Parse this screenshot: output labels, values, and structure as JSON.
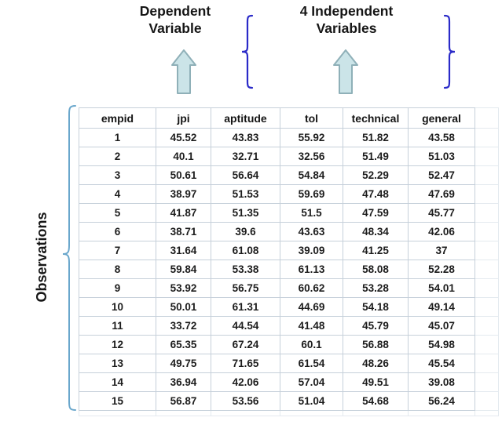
{
  "annotations": {
    "dependent": {
      "line1": "Dependent",
      "line2": "Variable"
    },
    "independent": {
      "line1": "4 Independent",
      "line2": "Variables"
    },
    "observations": "Observations"
  },
  "colors": {
    "arrow_fill": "#cbe4e8",
    "arrow_border": "#8fb0b8",
    "top_brace": "#2a2ac8",
    "side_brace": "#6aa7cc",
    "grid": "#c6d0da",
    "ghost": "#e4eaef",
    "text": "#1b1b1b"
  },
  "table": {
    "columns": [
      "empid",
      "jpi",
      "aptitude",
      "tol",
      "technical",
      "general"
    ],
    "rows": [
      [
        "1",
        "45.52",
        "43.83",
        "55.92",
        "51.82",
        "43.58"
      ],
      [
        "2",
        "40.1",
        "32.71",
        "32.56",
        "51.49",
        "51.03"
      ],
      [
        "3",
        "50.61",
        "56.64",
        "54.84",
        "52.29",
        "52.47"
      ],
      [
        "4",
        "38.97",
        "51.53",
        "59.69",
        "47.48",
        "47.69"
      ],
      [
        "5",
        "41.87",
        "51.35",
        "51.5",
        "47.59",
        "45.77"
      ],
      [
        "6",
        "38.71",
        "39.6",
        "43.63",
        "48.34",
        "42.06"
      ],
      [
        "7",
        "31.64",
        "61.08",
        "39.09",
        "41.25",
        "37"
      ],
      [
        "8",
        "59.84",
        "53.38",
        "61.13",
        "58.08",
        "52.28"
      ],
      [
        "9",
        "53.92",
        "56.75",
        "60.62",
        "53.28",
        "54.01"
      ],
      [
        "10",
        "50.01",
        "61.31",
        "44.69",
        "54.18",
        "49.14"
      ],
      [
        "11",
        "33.72",
        "44.54",
        "41.48",
        "45.79",
        "45.07"
      ],
      [
        "12",
        "65.35",
        "67.24",
        "60.1",
        "56.88",
        "54.98"
      ],
      [
        "13",
        "49.75",
        "71.65",
        "61.54",
        "48.26",
        "45.54"
      ],
      [
        "14",
        "36.94",
        "42.06",
        "57.04",
        "49.51",
        "39.08"
      ],
      [
        "15",
        "56.87",
        "53.56",
        "51.04",
        "54.68",
        "56.24"
      ]
    ]
  }
}
